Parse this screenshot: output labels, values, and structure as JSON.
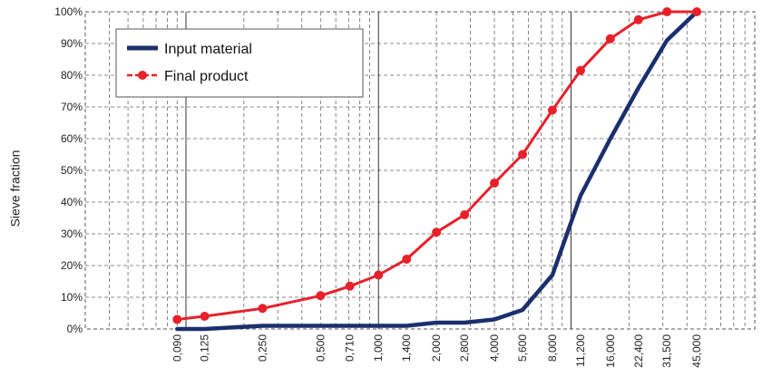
{
  "chart_data": {
    "type": "line",
    "title": "",
    "xlabel": "",
    "ylabel": "Sieve fraction",
    "x_scale": "log",
    "x_range": [
      0.03,
      90
    ],
    "ylim": [
      0,
      100
    ],
    "grid": true,
    "legend_position": "top-left",
    "y_ticks": [
      "0%",
      "10%",
      "20%",
      "30%",
      "40%",
      "50%",
      "60%",
      "70%",
      "80%",
      "90%",
      "100%"
    ],
    "x_categories": [
      "0,090",
      "0,125",
      "0,250",
      "0,500",
      "0,710",
      "1,000",
      "1,400",
      "2,000",
      "2,800",
      "4,000",
      "5,600",
      "8,000",
      "11,200",
      "16,000",
      "22,400",
      "31,500",
      "45,000"
    ],
    "x": [
      0.09,
      0.125,
      0.25,
      0.5,
      0.71,
      1.0,
      1.4,
      2.0,
      2.8,
      4.0,
      5.6,
      8.0,
      11.2,
      16.0,
      22.4,
      31.5,
      45.0
    ],
    "series": [
      {
        "name": "Input material",
        "color": "#1b2f6e",
        "marker": "none",
        "values": [
          0,
          0,
          1,
          1,
          1,
          1,
          1,
          2,
          2,
          3,
          6,
          17,
          42,
          60,
          76,
          91,
          100
        ]
      },
      {
        "name": "Final product",
        "color": "#e8202a",
        "marker": "circle",
        "line_style": "solid",
        "values": [
          3,
          4,
          6.5,
          10.5,
          13.5,
          17,
          22,
          30.5,
          36,
          46,
          55,
          69,
          81.5,
          91.5,
          97.5,
          100,
          100
        ]
      }
    ]
  }
}
